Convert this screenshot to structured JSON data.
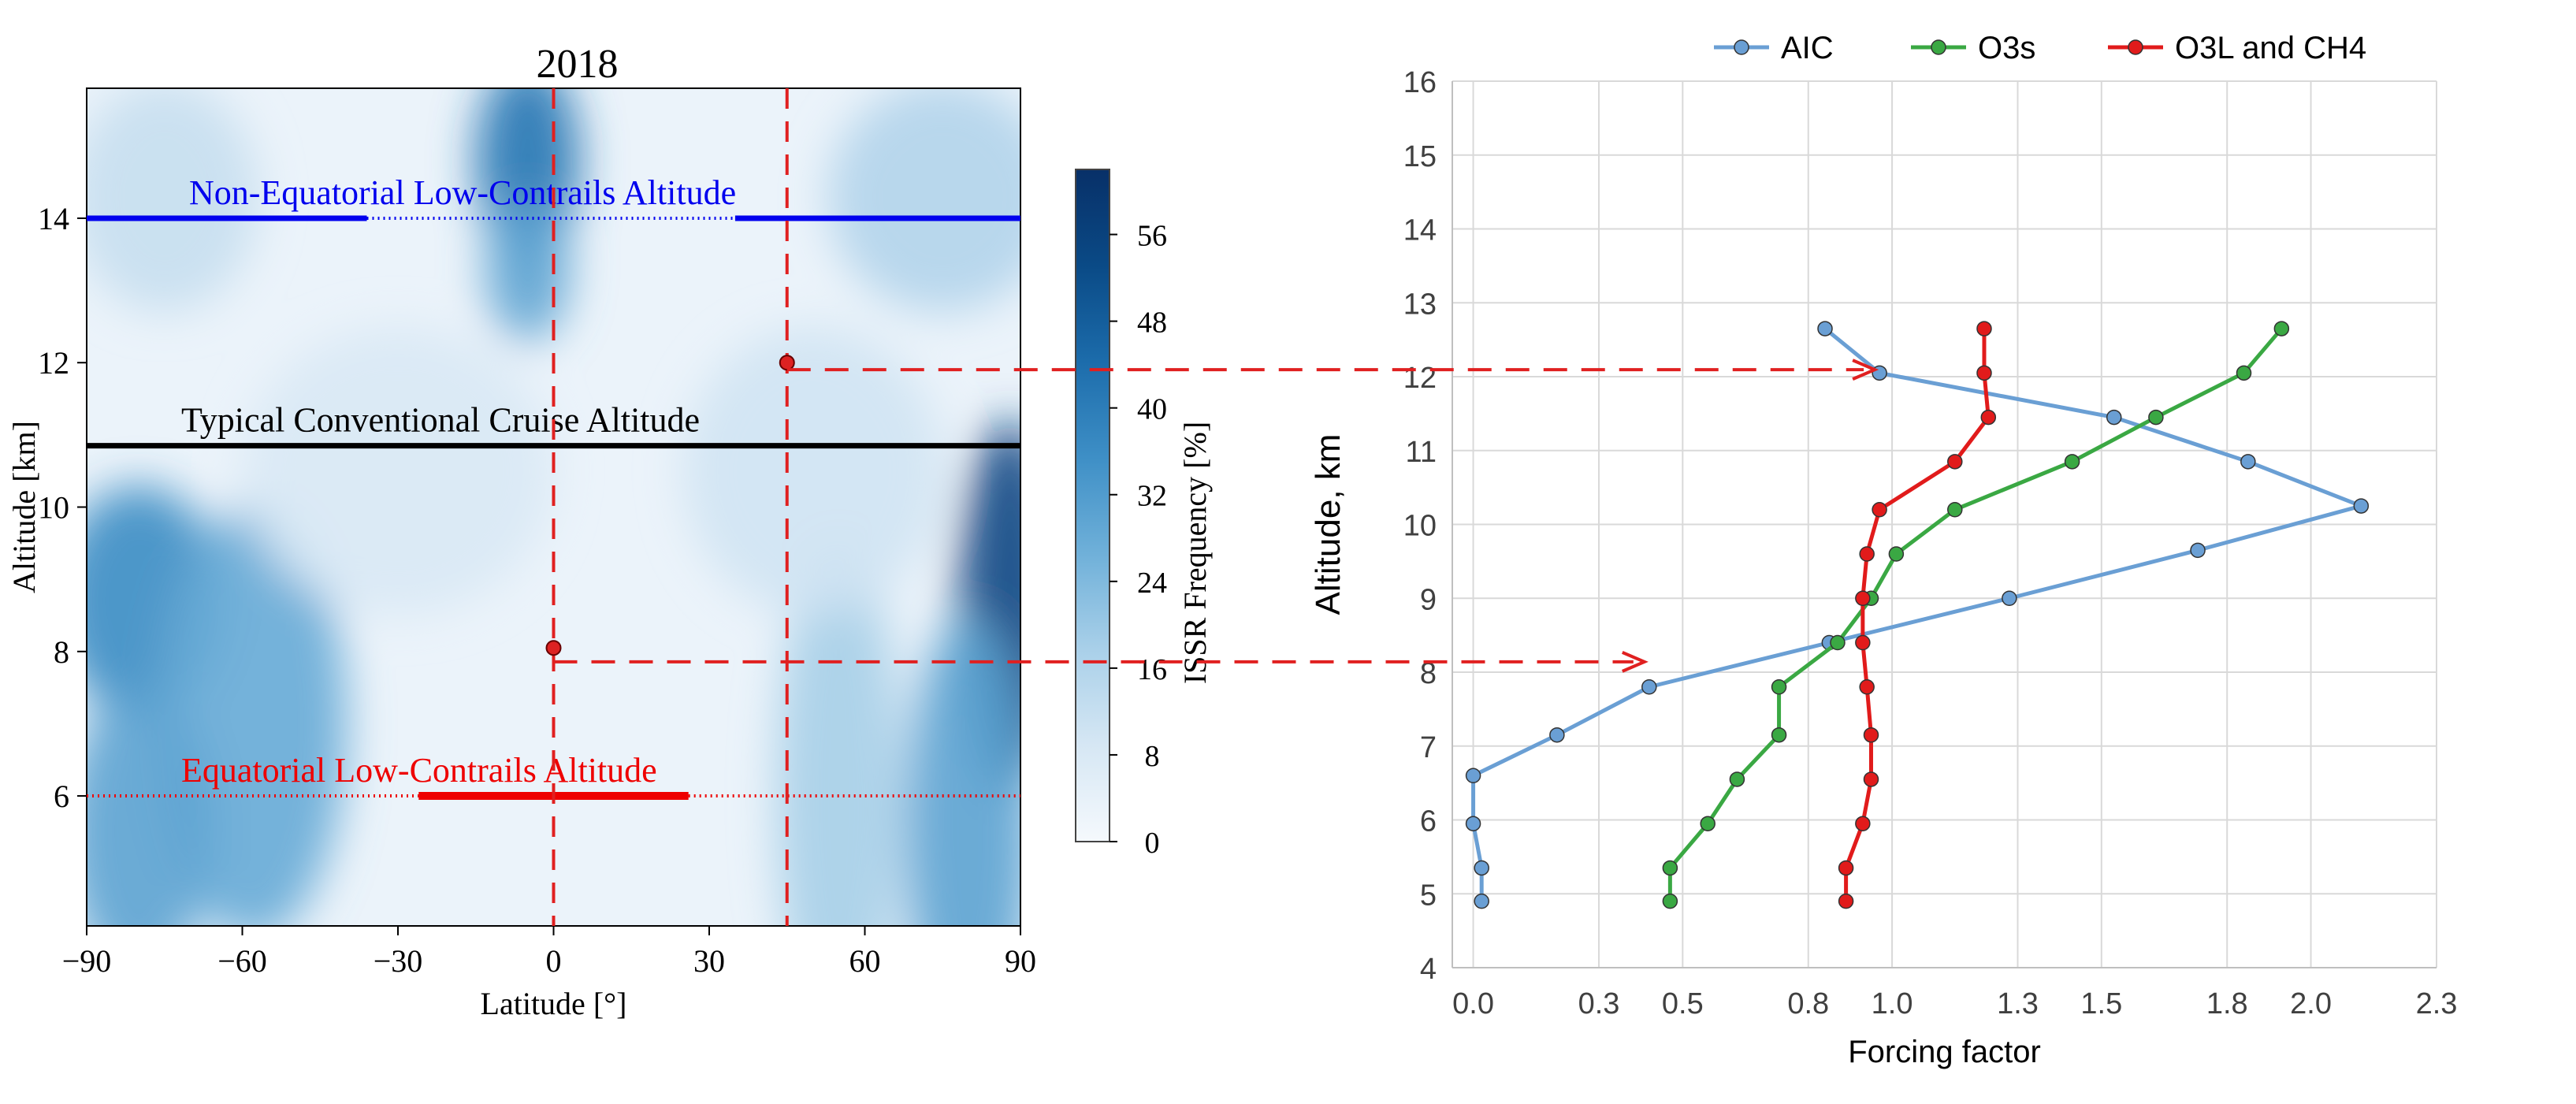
{
  "chart_data": [
    {
      "type": "heatmap",
      "title": "2018",
      "xlabel": "Latitude [°]",
      "ylabel": "Altitude [km]",
      "xlim": [
        -90,
        90
      ],
      "ylim": [
        4.2,
        15.8
      ],
      "xticks": [
        -90,
        -60,
        -30,
        0,
        30,
        60,
        90
      ],
      "xtick_labels": [
        "−90",
        "−60",
        "−30",
        "0",
        "30",
        "60",
        "90"
      ],
      "yticks": [
        6,
        8,
        10,
        12,
        14
      ],
      "colorbar": {
        "label": "ISSR Frequency [%]",
        "range": [
          0,
          62
        ],
        "ticks": [
          0,
          8,
          16,
          24,
          32,
          40,
          48,
          56
        ],
        "colors": [
          "#f5f9fd",
          "#d6e7f4",
          "#a9d0e9",
          "#6fb0d9",
          "#3e8fc6",
          "#1c6cab",
          "#0a4a86",
          "#083068"
        ]
      },
      "field_blobs": [
        {
          "lat": -80,
          "alt": 8.7,
          "sx": 16,
          "sy": 1.6,
          "value": 36
        },
        {
          "lat": -58,
          "alt": 7.0,
          "sx": 18,
          "sy": 3.0,
          "value": 28
        },
        {
          "lat": -80,
          "alt": 5.5,
          "sx": 14,
          "sy": 2.0,
          "value": 30
        },
        {
          "lat": -5,
          "alt": 14.8,
          "sx": 10,
          "sy": 1.4,
          "value": 42
        },
        {
          "lat": -5,
          "alt": 13.3,
          "sx": 8,
          "sy": 1.0,
          "value": 30
        },
        {
          "lat": 88,
          "alt": 8.6,
          "sx": 10,
          "sy": 2.6,
          "value": 54
        },
        {
          "lat": 80,
          "alt": 5.5,
          "sx": 12,
          "sy": 3.0,
          "value": 30
        },
        {
          "lat": 55,
          "alt": 6.0,
          "sx": 12,
          "sy": 3.5,
          "value": 18
        },
        {
          "lat": 75,
          "alt": 14.3,
          "sx": 22,
          "sy": 1.6,
          "value": 16
        },
        {
          "lat": -75,
          "alt": 14.3,
          "sx": 18,
          "sy": 1.6,
          "value": 12
        },
        {
          "lat": -30,
          "alt": 10.5,
          "sx": 30,
          "sy": 2.0,
          "value": 8
        },
        {
          "lat": 50,
          "alt": 10.5,
          "sx": 25,
          "sy": 2.0,
          "value": 10
        }
      ],
      "annotations": [
        {
          "text": "Non-Equatorial Low-Contrails Altitude",
          "color": "#0000ee",
          "altitude": 14,
          "segments_solid": [
            [
              -90,
              -36
            ],
            [
              35,
              90
            ]
          ],
          "segments_dotted": [
            [
              -36,
              35
            ]
          ]
        },
        {
          "text": "Typical Conventional Cruise Altitude",
          "color": "#000000",
          "altitude": 10.85,
          "segments_solid": [
            [
              -90,
              90
            ]
          ],
          "segments_dotted": []
        },
        {
          "text": "Equatorial Low-Contrails Altitude",
          "color": "#ee0000",
          "altitude": 6,
          "segments_solid": [
            [
              -26,
              26
            ]
          ],
          "segments_dotted": [
            [
              -90,
              -26
            ],
            [
              26,
              90
            ]
          ]
        }
      ],
      "markers": [
        {
          "lat": 0,
          "alt": 8.05,
          "color": "#dd2222"
        },
        {
          "lat": 45,
          "alt": 12.0,
          "color": "#dd2222"
        }
      ],
      "dashed_verticals_lat": [
        0,
        45
      ]
    },
    {
      "type": "line",
      "xlabel": "Forcing factor",
      "ylabel": "Altitude, km",
      "xlim": [
        -0.05,
        2.3
      ],
      "ylim": [
        4,
        16
      ],
      "xticks": [
        0.0,
        0.3,
        0.5,
        0.8,
        1.0,
        1.3,
        1.5,
        1.8,
        2.0,
        2.3
      ],
      "xtick_labels": [
        "0.0",
        "0.3",
        "0.5",
        "0.8",
        "1.0",
        "1.3",
        "1.5",
        "1.8",
        "2.0",
        "2.3"
      ],
      "yticks": [
        4,
        5,
        6,
        7,
        8,
        9,
        10,
        11,
        12,
        13,
        14,
        15,
        16
      ],
      "legend": "top",
      "series": [
        {
          "name": "AIC",
          "color": "#6a9fd4",
          "x": [
            0.02,
            0.02,
            0.0,
            0.0,
            0.2,
            0.42,
            0.85,
            1.28,
            1.73,
            2.12,
            1.85,
            1.53,
            0.97,
            0.84
          ],
          "y": [
            4.9,
            5.35,
            5.95,
            6.6,
            7.15,
            7.8,
            8.4,
            9.0,
            9.65,
            10.25,
            10.85,
            11.45,
            12.05,
            12.65
          ]
        },
        {
          "name": "O3s",
          "color": "#3aa843",
          "x": [
            0.47,
            0.47,
            0.56,
            0.63,
            0.73,
            0.73,
            0.87,
            0.95,
            1.01,
            1.15,
            1.43,
            1.63,
            1.84,
            1.93
          ],
          "y": [
            4.9,
            5.35,
            5.95,
            6.55,
            7.15,
            7.8,
            8.4,
            9.0,
            9.6,
            10.2,
            10.85,
            11.45,
            12.05,
            12.65
          ]
        },
        {
          "name": "O3L and CH4",
          "color": "#e11b1b",
          "x": [
            0.89,
            0.89,
            0.93,
            0.95,
            0.95,
            0.94,
            0.93,
            0.93,
            0.94,
            0.97,
            1.15,
            1.23,
            1.22,
            1.22
          ],
          "y": [
            4.9,
            5.35,
            5.95,
            6.55,
            7.15,
            7.8,
            8.4,
            9.0,
            9.6,
            10.2,
            10.85,
            11.45,
            12.05,
            12.65
          ]
        }
      ]
    }
  ],
  "connectors": [
    {
      "from": "heatmap-marker-45N",
      "to_altitude": 12.0,
      "to_x": 0.97
    },
    {
      "from": "heatmap-marker-equator",
      "to_altitude": 8.0,
      "to_x": 0.42
    }
  ]
}
